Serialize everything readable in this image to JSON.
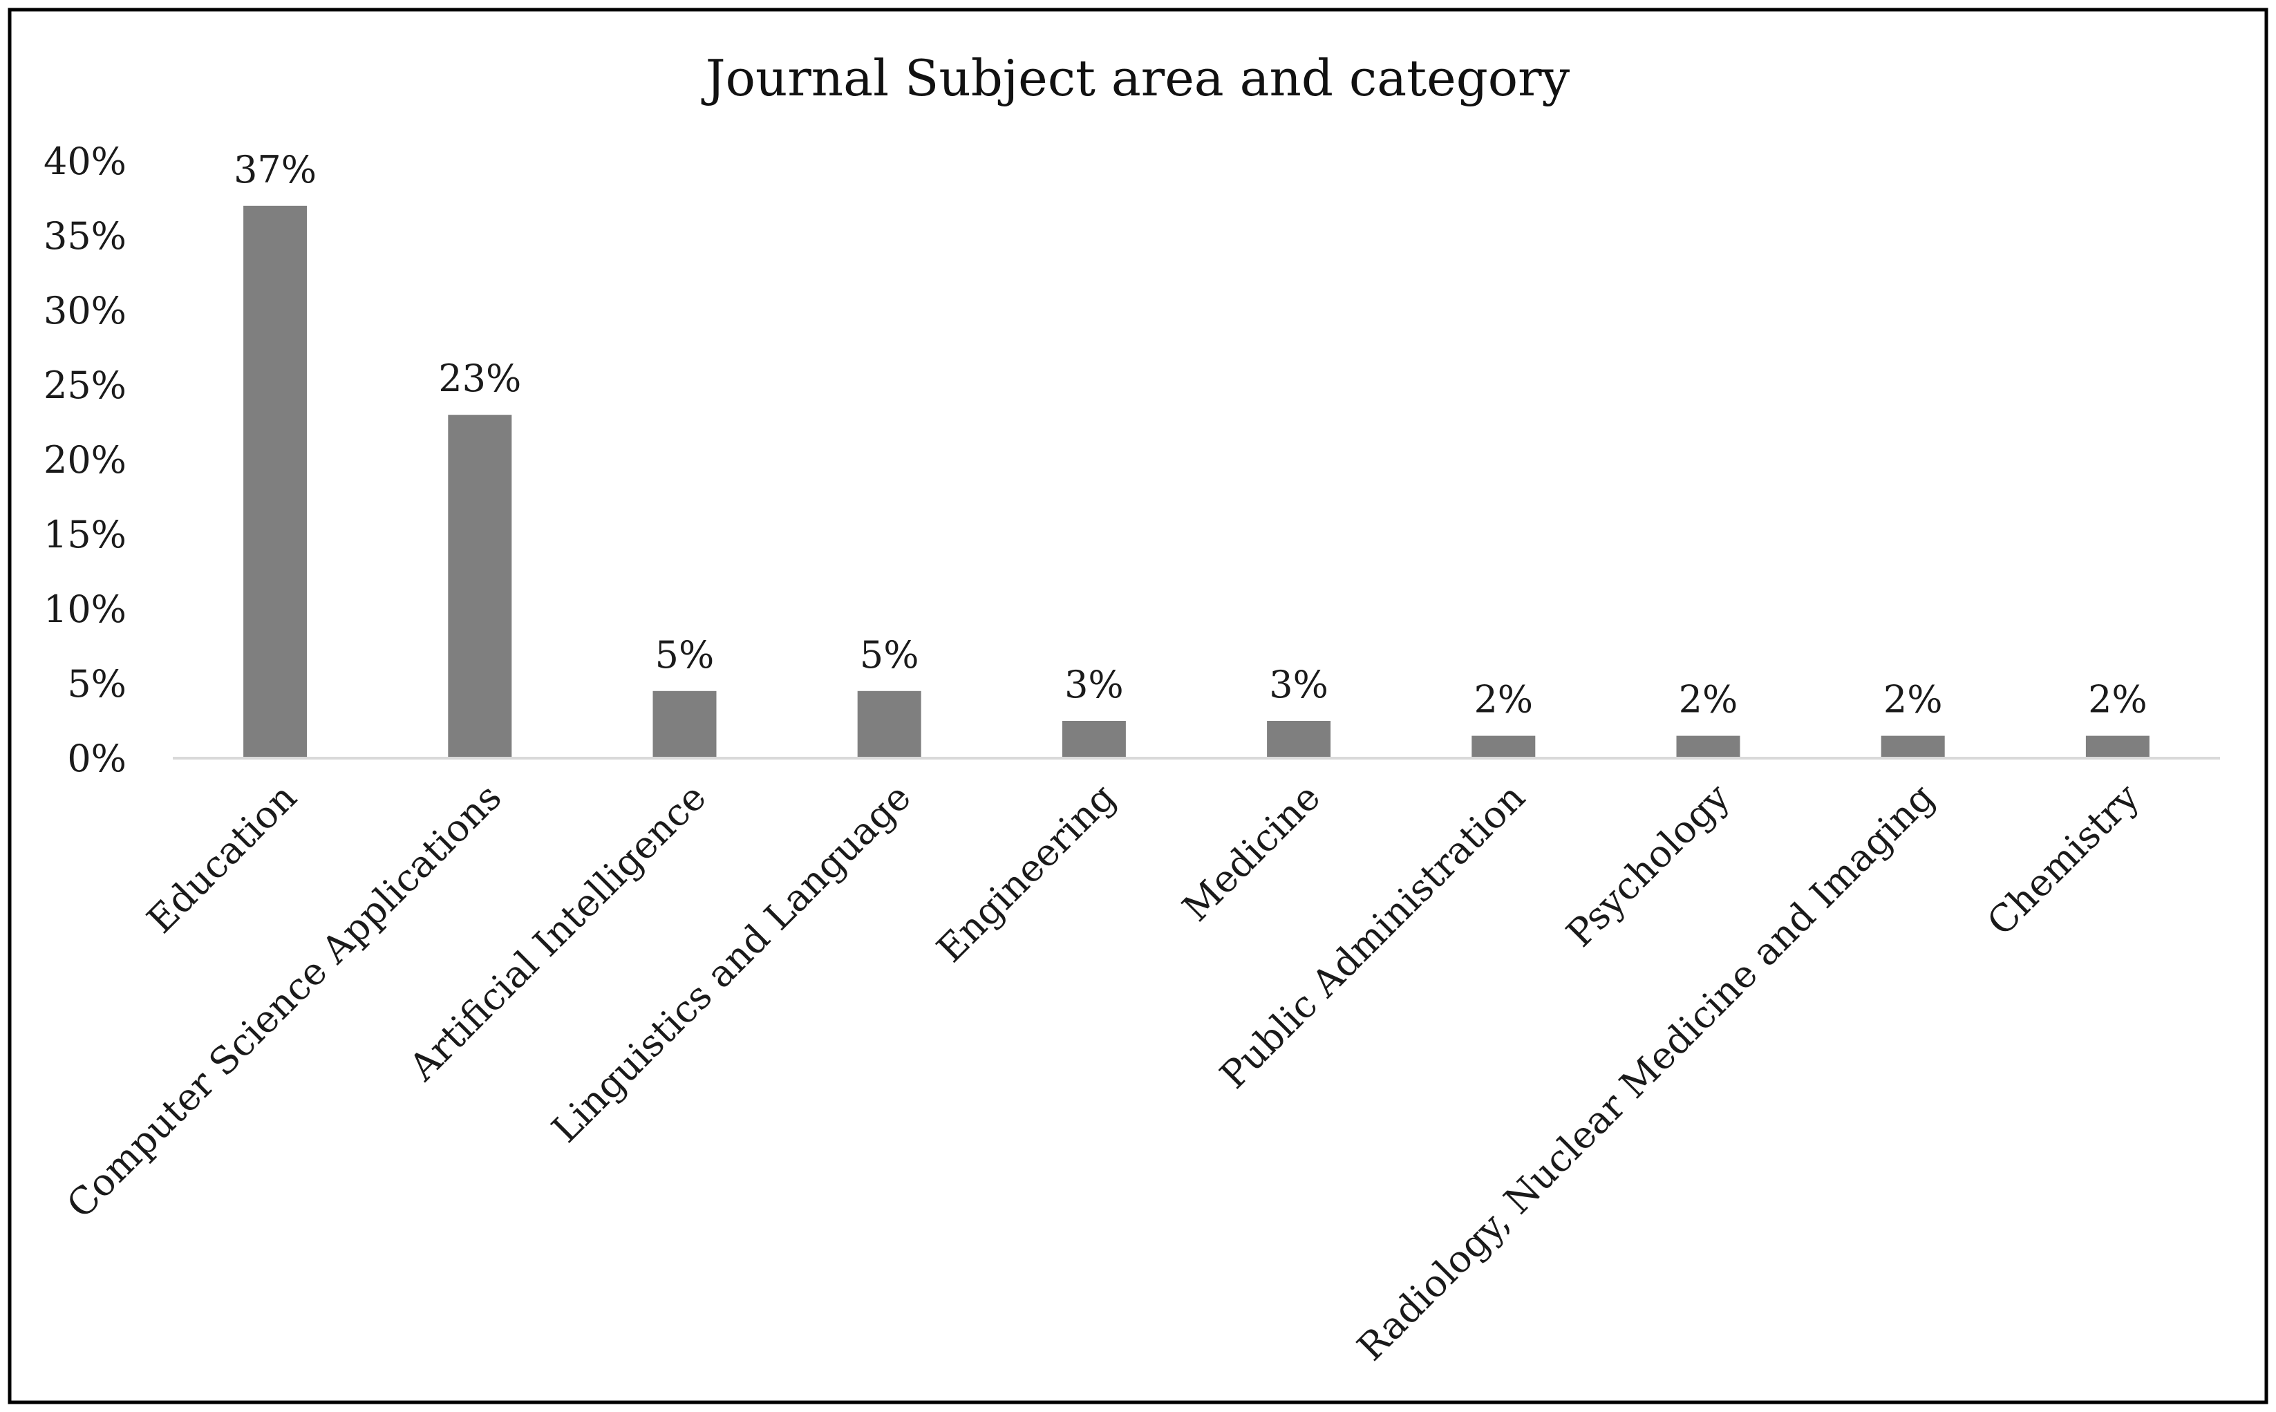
{
  "chart_data": {
    "type": "bar",
    "title": "Journal Subject area and category",
    "xlabel": "",
    "ylabel": "",
    "categories": [
      "Education",
      "Computer Science Applications",
      "Artificial Intelligence",
      "Linguistics and Language",
      "Engineering",
      "Medicine",
      "Public Administration",
      "Psychology",
      "Radiology, Nuclear Medicine and Imaging",
      "Chemistry"
    ],
    "values": [
      37,
      23,
      4.5,
      4.5,
      2.5,
      2.5,
      1.5,
      1.5,
      1.5,
      1.5
    ],
    "data_labels": [
      "37%",
      "23%",
      "5%",
      "5%",
      "3%",
      "3%",
      "2%",
      "2%",
      "2%",
      "2%"
    ],
    "ylim": [
      0,
      40
    ],
    "yticks": [
      0,
      5,
      10,
      15,
      20,
      25,
      30,
      35,
      40
    ],
    "ytick_labels": [
      "0%",
      "5%",
      "10%",
      "15%",
      "20%",
      "25%",
      "30%",
      "35%",
      "40%"
    ],
    "grid": false,
    "legend": "none",
    "bar_color": "#7f7f7f",
    "axis_color": "#d9d9d9",
    "border_color": "#000000"
  }
}
